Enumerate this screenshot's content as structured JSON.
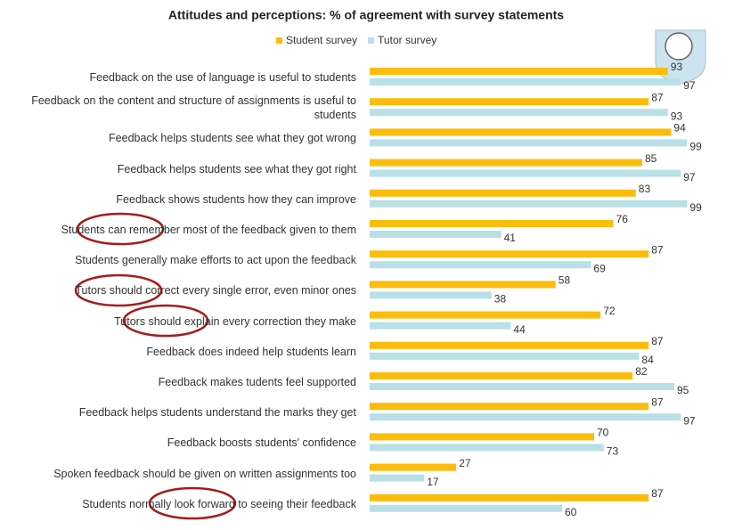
{
  "chart_data": {
    "type": "bar",
    "orientation": "horizontal",
    "title": "Attitudes and perceptions: % of agreement with survey statements",
    "categories": [
      "Feedback on the use of language is useful to students",
      "Feedback on the content and structure of assignments is useful to students",
      "Feedback helps  students see what they got wrong",
      "Feedback helps students see what they got right",
      "Feedback shows students how they can improve",
      "Students can remember most of the feedback given to them",
      "Students generally make efforts to act upon the feedback",
      "Tutors should correct every single error, even minor ones",
      "Tutors should explain every correction they make",
      "Feedback does indeed help students learn",
      "Feedback makes tudents feel supported",
      "Feedback helps students understand the marks they get",
      "Feedback boosts students' confidence",
      "Spoken feedback should be given on written assignments too",
      "Students normally look forward to seeing their feedback"
    ],
    "series": [
      {
        "name": "Student survey",
        "color": "#fbbc0c",
        "values": [
          93,
          87,
          94,
          85,
          83,
          76,
          87,
          58,
          72,
          87,
          82,
          87,
          70,
          27,
          87
        ]
      },
      {
        "name": "Tutor survey",
        "color": "#b9dfe7",
        "values": [
          97,
          93,
          99,
          97,
          99,
          41,
          69,
          38,
          44,
          84,
          95,
          97,
          73,
          17,
          60
        ]
      }
    ],
    "xlim": [
      0,
      100
    ],
    "legend": "top"
  }
}
